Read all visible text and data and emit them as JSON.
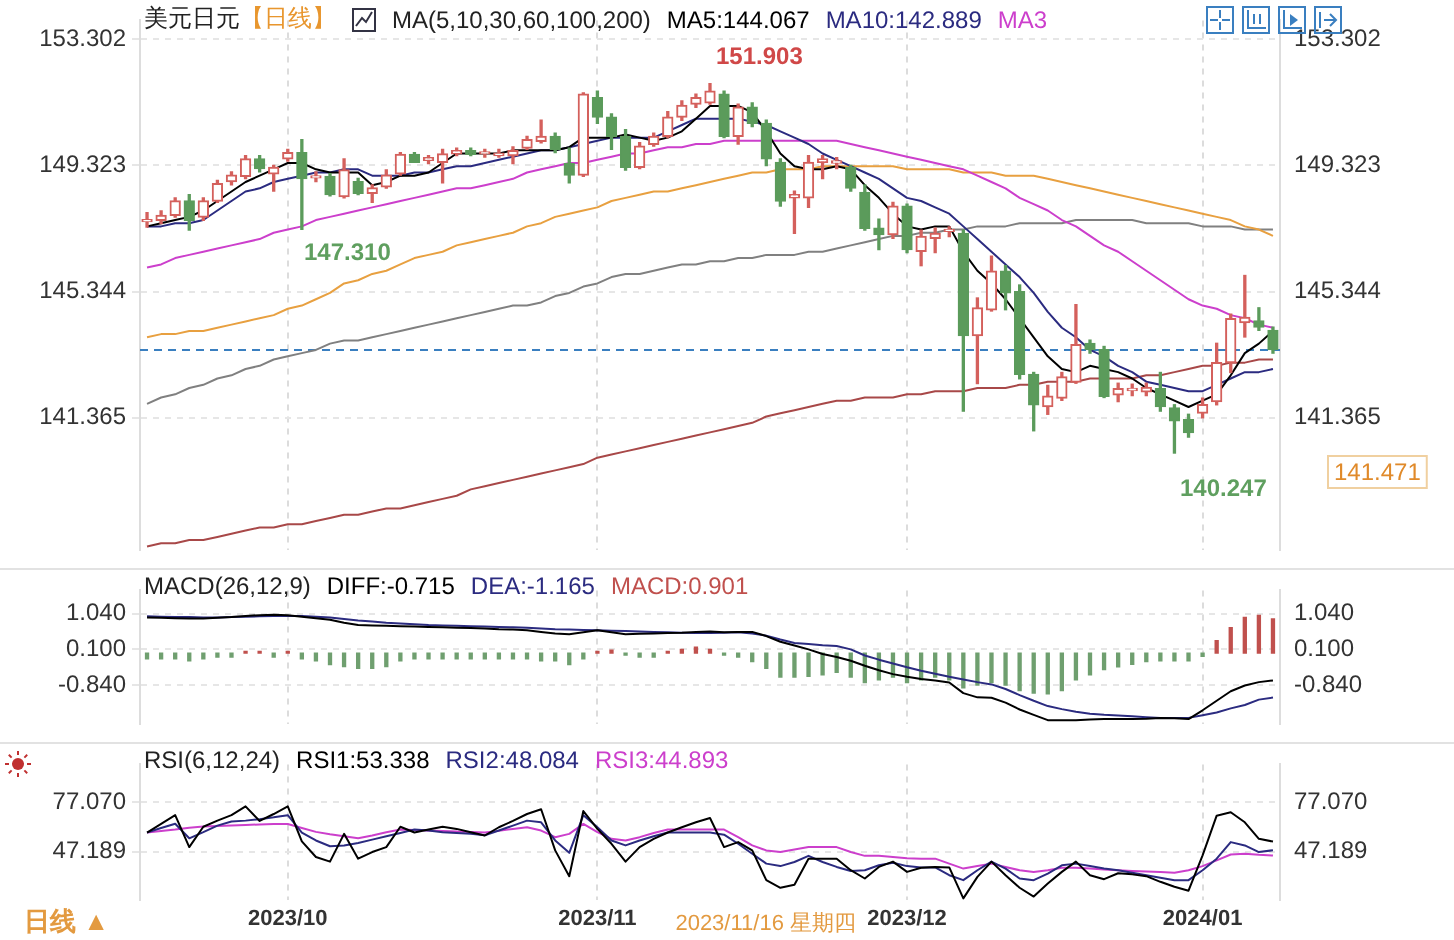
{
  "chart_data": [
    {
      "type": "candlestick",
      "title": "美元日元",
      "subtitle": "【日线】",
      "legend_title": "MA(5,10,30,60,100,200)",
      "legend": "top",
      "grid": true,
      "tick_labels": "y",
      "categories": [
        null,
        null,
        null,
        null,
        null,
        null,
        null,
        null,
        null,
        null,
        "2023/10",
        null,
        null,
        null,
        null,
        null,
        null,
        null,
        null,
        null,
        null,
        null,
        null,
        null,
        null,
        null,
        null,
        null,
        null,
        null,
        null,
        null,
        "2023/11",
        null,
        null,
        null,
        null,
        null,
        null,
        null,
        null,
        null,
        null,
        null,
        null,
        null,
        null,
        null,
        null,
        null,
        null,
        null,
        null,
        null,
        "2023/12",
        null,
        null,
        null,
        null,
        null,
        null,
        null,
        null,
        null,
        null,
        null,
        null,
        null,
        null,
        null,
        null,
        null,
        null,
        null,
        null,
        "2024/01",
        null,
        null,
        null,
        null,
        null
      ],
      "ohlc": [
        [
          147.55,
          147.83,
          147.38,
          147.59
        ],
        [
          147.59,
          147.89,
          147.49,
          147.75
        ],
        [
          147.75,
          148.3,
          147.69,
          148.2
        ],
        [
          148.2,
          148.4,
          147.28,
          147.59
        ],
        [
          147.69,
          148.3,
          147.59,
          148.2
        ],
        [
          148.2,
          148.85,
          148.16,
          148.75
        ],
        [
          148.81,
          149.12,
          148.71,
          149.02
        ],
        [
          148.98,
          149.63,
          148.91,
          149.53
        ],
        [
          149.53,
          149.63,
          149.12,
          149.22
        ],
        [
          149.06,
          149.32,
          148.51,
          149.26
        ],
        [
          149.53,
          149.83,
          149.46,
          149.73
        ],
        [
          149.73,
          150.14,
          147.31,
          148.91
        ],
        [
          148.93,
          149.12,
          148.81,
          148.99
        ],
        [
          148.98,
          149.06,
          148.36,
          148.4
        ],
        [
          148.34,
          149.53,
          148.3,
          149.18
        ],
        [
          148.81,
          148.91,
          148.4,
          148.44
        ],
        [
          148.44,
          148.71,
          148.16,
          148.61
        ],
        [
          148.65,
          149.18,
          148.61,
          149.02
        ],
        [
          149.06,
          149.73,
          149.02,
          149.67
        ],
        [
          149.67,
          149.73,
          149.42,
          149.42
        ],
        [
          149.48,
          149.63,
          149.38,
          149.57
        ],
        [
          149.42,
          149.83,
          148.77,
          149.69
        ],
        [
          149.69,
          149.87,
          149.63,
          149.79
        ],
        [
          149.79,
          149.87,
          149.63,
          149.67
        ],
        [
          149.69,
          149.83,
          149.59,
          149.73
        ],
        [
          149.63,
          149.83,
          149.59,
          149.71
        ],
        [
          149.63,
          149.91,
          149.38,
          149.79
        ],
        [
          149.87,
          150.24,
          149.83,
          150.14
        ],
        [
          150.08,
          150.75,
          150.04,
          150.24
        ],
        [
          150.24,
          150.34,
          149.73,
          149.83
        ],
        [
          149.38,
          149.87,
          148.77,
          149.02
        ],
        [
          149.02,
          151.61,
          148.98,
          151.57
        ],
        [
          151.46,
          151.67,
          150.65,
          150.85
        ],
        [
          150.85,
          150.95,
          149.83,
          150.24
        ],
        [
          150.24,
          150.45,
          149.18,
          149.26
        ],
        [
          149.26,
          150.04,
          149.22,
          149.93
        ],
        [
          149.99,
          150.34,
          149.93,
          150.24
        ],
        [
          150.24,
          151.02,
          150.2,
          150.85
        ],
        [
          150.85,
          151.36,
          150.75,
          151.22
        ],
        [
          151.26,
          151.57,
          151.16,
          151.46
        ],
        [
          151.3,
          151.903,
          151.26,
          151.67
        ],
        [
          151.57,
          151.67,
          150.2,
          150.24
        ],
        [
          150.24,
          151.26,
          150.0,
          151.16
        ],
        [
          151.16,
          151.3,
          150.55,
          150.65
        ],
        [
          150.65,
          150.75,
          149.32,
          149.53
        ],
        [
          149.42,
          149.53,
          148.04,
          148.2
        ],
        [
          148.3,
          148.51,
          147.18,
          148.4
        ],
        [
          148.3,
          149.63,
          148.0,
          149.42
        ],
        [
          149.42,
          149.63,
          148.91,
          149.53
        ],
        [
          149.4,
          149.57,
          149.22,
          149.44
        ],
        [
          149.26,
          149.32,
          148.51,
          148.61
        ],
        [
          148.47,
          148.71,
          147.28,
          147.34
        ],
        [
          147.34,
          147.63,
          146.67,
          147.14
        ],
        [
          147.14,
          148.16,
          147.02,
          148.04
        ],
        [
          148.04,
          148.1,
          146.57,
          146.67
        ],
        [
          146.61,
          147.28,
          146.16,
          147.08
        ],
        [
          147.02,
          147.34,
          146.57,
          147.18
        ],
        [
          147.24,
          147.38,
          147.08,
          147.28
        ],
        [
          147.18,
          147.28,
          141.57,
          143.95
        ],
        [
          143.95,
          145.14,
          142.44,
          144.83
        ],
        [
          144.77,
          146.46,
          144.73,
          145.99
        ],
        [
          145.99,
          146.16,
          144.77,
          145.3
        ],
        [
          145.34,
          145.55,
          142.59,
          142.73
        ],
        [
          142.73,
          142.79,
          140.95,
          141.77
        ],
        [
          141.71,
          142.38,
          141.47,
          142.04
        ],
        [
          141.98,
          142.79,
          141.91,
          142.65
        ],
        [
          142.49,
          144.93,
          142.45,
          143.67
        ],
        [
          143.71,
          143.81,
          143.4,
          143.51
        ],
        [
          143.51,
          143.61,
          142.0,
          142.04
        ],
        [
          142.08,
          142.45,
          141.87,
          142.28
        ],
        [
          142.22,
          142.42,
          142.06,
          142.26
        ],
        [
          142.18,
          142.45,
          142.06,
          142.32
        ],
        [
          142.28,
          142.79,
          141.57,
          141.71
        ],
        [
          141.67,
          141.77,
          140.247,
          141.26
        ],
        [
          141.3,
          141.47,
          140.75,
          140.89
        ],
        [
          141.51,
          141.98,
          141.36,
          141.77
        ],
        [
          141.87,
          143.71,
          141.77,
          143.1
        ],
        [
          143.1,
          144.63,
          142.79,
          144.49
        ],
        [
          144.36,
          145.85,
          143.91,
          144.53
        ],
        [
          144.42,
          144.83,
          144.12,
          144.22
        ],
        [
          144.12,
          144.22,
          143.4,
          143.51
        ]
      ],
      "colors": [
        "#d4605c",
        "#d4605c",
        "#d4605c",
        "#5b9b5b",
        "#d4605c",
        "#d4605c",
        "#d4605c",
        "#d4605c",
        "#5b9b5b",
        "#d4605c",
        "#d4605c",
        "#5b9b5b",
        "#d4605c",
        "#5b9b5b",
        "#d4605c",
        "#5b9b5b",
        "#d4605c",
        "#d4605c",
        "#d4605c",
        "#5b9b5b",
        "#d4605c",
        "#d4605c",
        "#d4605c",
        "#5b9b5b",
        "#d4605c",
        "#d4605c",
        "#d4605c",
        "#d4605c",
        "#d4605c",
        "#5b9b5b",
        "#5b9b5b",
        "#d4605c",
        "#5b9b5b",
        "#5b9b5b",
        "#5b9b5b",
        "#d4605c",
        "#d4605c",
        "#d4605c",
        "#d4605c",
        "#d4605c",
        "#d4605c",
        "#5b9b5b",
        "#d4605c",
        "#5b9b5b",
        "#5b9b5b",
        "#5b9b5b",
        "#d4605c",
        "#d4605c",
        "#d4605c",
        "#d4605c",
        "#5b9b5b",
        "#5b9b5b",
        "#5b9b5b",
        "#d4605c",
        "#5b9b5b",
        "#d4605c",
        "#d4605c",
        "#d4605c",
        "#5b9b5b",
        "#d4605c",
        "#d4605c",
        "#5b9b5b",
        "#5b9b5b",
        "#5b9b5b",
        "#d4605c",
        "#d4605c",
        "#d4605c",
        "#5b9b5b",
        "#5b9b5b",
        "#d4605c",
        "#d4605c",
        "#d4605c",
        "#5b9b5b",
        "#5b9b5b",
        "#5b9b5b",
        "#d4605c",
        "#d4605c",
        "#d4605c",
        "#d4605c",
        "#5b9b5b",
        "#5b9b5b"
      ],
      "series": [
        {
          "name": "MA5:144.067",
          "type": "line",
          "color": "#000000",
          "values": [
            147.4,
            147.5,
            147.6,
            147.7,
            147.9,
            148.2,
            148.5,
            148.8,
            149.0,
            149.2,
            149.4,
            149.4,
            149.2,
            149.1,
            149.1,
            149.1,
            148.7,
            148.8,
            149.0,
            149.0,
            149.1,
            149.4,
            149.7,
            149.7,
            149.7,
            149.7,
            149.8,
            149.8,
            149.8,
            149.8,
            149.9,
            150.2,
            150.2,
            150.2,
            150.3,
            150.2,
            150.1,
            150.2,
            150.4,
            150.8,
            151.2,
            151.2,
            151.2,
            151.0,
            150.4,
            149.7,
            149.3,
            149.2,
            149.2,
            149.3,
            149.2,
            148.7,
            148.3,
            147.8,
            147.4,
            147.3,
            147.4,
            147.4,
            146.6,
            146.0,
            145.6,
            145.1,
            144.5,
            143.9,
            143.3,
            142.9,
            142.8,
            143.0,
            142.9,
            142.8,
            142.6,
            142.3,
            142.1,
            141.9,
            141.7,
            141.9,
            142.1,
            142.7,
            143.4,
            143.7,
            144.1
          ]
        },
        {
          "name": "MA10:142.889",
          "type": "line",
          "color": "#2b2b80",
          "values": [
            147.4,
            147.4,
            147.5,
            147.5,
            147.6,
            147.9,
            148.2,
            148.5,
            148.6,
            148.8,
            148.9,
            149.0,
            149.1,
            149.1,
            149.2,
            149.2,
            149.0,
            149.0,
            149.0,
            149.1,
            149.1,
            149.2,
            149.3,
            149.3,
            149.4,
            149.5,
            149.6,
            149.7,
            149.8,
            149.8,
            149.9,
            150.0,
            150.1,
            150.2,
            150.2,
            150.2,
            150.2,
            150.4,
            150.6,
            150.8,
            150.8,
            150.8,
            150.8,
            150.7,
            150.6,
            150.4,
            150.2,
            150.0,
            149.7,
            149.5,
            149.3,
            149.1,
            148.9,
            148.6,
            148.3,
            148.2,
            148.0,
            147.8,
            147.4,
            147.0,
            146.6,
            146.2,
            145.8,
            145.3,
            144.7,
            144.2,
            143.9,
            143.5,
            143.3,
            143.0,
            142.8,
            142.5,
            142.4,
            142.3,
            142.2,
            142.2,
            142.4,
            142.6,
            142.8,
            142.8,
            142.9
          ]
        },
        {
          "name": "MA3",
          "type": "line",
          "color": "#cc3fcc",
          "values": [
            146.1,
            146.2,
            146.4,
            146.5,
            146.6,
            146.7,
            146.8,
            146.9,
            147.0,
            147.2,
            147.3,
            147.4,
            147.6,
            147.7,
            147.8,
            147.9,
            148.0,
            148.1,
            148.2,
            148.3,
            148.4,
            148.5,
            148.6,
            148.6,
            148.7,
            148.8,
            148.9,
            149.1,
            149.2,
            149.3,
            149.4,
            149.4,
            149.5,
            149.6,
            149.7,
            149.7,
            149.8,
            149.9,
            149.9,
            150.0,
            150.0,
            150.1,
            150.1,
            150.1,
            150.1,
            150.1,
            150.1,
            150.1,
            150.1,
            150.1,
            150.0,
            149.9,
            149.8,
            149.7,
            149.6,
            149.5,
            149.4,
            149.3,
            149.2,
            149.0,
            148.8,
            148.6,
            148.3,
            148.1,
            147.9,
            147.6,
            147.4,
            147.1,
            146.8,
            146.6,
            146.3,
            146.0,
            145.7,
            145.4,
            145.1,
            144.9,
            144.8,
            144.6,
            144.5,
            144.3,
            144.2
          ]
        },
        {
          "type": "line",
          "color": "#e8a040",
          "values": [
            143.9,
            144.0,
            144.0,
            144.1,
            144.1,
            144.2,
            144.3,
            144.4,
            144.5,
            144.6,
            144.8,
            144.9,
            145.1,
            145.3,
            145.6,
            145.7,
            145.9,
            146.0,
            146.2,
            146.4,
            146.5,
            146.6,
            146.8,
            146.9,
            147.0,
            147.1,
            147.2,
            147.4,
            147.5,
            147.7,
            147.8,
            147.9,
            148.0,
            148.2,
            148.3,
            148.4,
            148.5,
            148.5,
            148.6,
            148.7,
            148.8,
            148.9,
            149.0,
            149.1,
            149.1,
            149.2,
            149.2,
            149.2,
            149.3,
            149.3,
            149.3,
            149.3,
            149.3,
            149.3,
            149.2,
            149.2,
            149.2,
            149.2,
            149.1,
            149.1,
            149.1,
            149.0,
            149.0,
            149.0,
            148.9,
            148.8,
            148.7,
            148.6,
            148.5,
            148.4,
            148.3,
            148.2,
            148.1,
            148.0,
            147.9,
            147.8,
            147.7,
            147.6,
            147.4,
            147.3,
            147.1
          ]
        },
        {
          "type": "line",
          "color": "#808080",
          "values": [
            141.8,
            142.0,
            142.1,
            142.3,
            142.4,
            142.6,
            142.7,
            142.9,
            143.0,
            143.2,
            143.3,
            143.4,
            143.5,
            143.7,
            143.8,
            143.8,
            143.9,
            144.0,
            144.1,
            144.2,
            144.3,
            144.4,
            144.5,
            144.6,
            144.7,
            144.8,
            144.9,
            144.9,
            145.0,
            145.2,
            145.3,
            145.5,
            145.6,
            145.8,
            145.9,
            145.9,
            146.0,
            146.1,
            146.2,
            146.2,
            146.3,
            146.3,
            146.4,
            146.4,
            146.5,
            146.5,
            146.5,
            146.6,
            146.6,
            146.7,
            146.8,
            146.9,
            147.0,
            147.1,
            147.1,
            147.2,
            147.2,
            147.3,
            147.3,
            147.4,
            147.4,
            147.4,
            147.5,
            147.5,
            147.5,
            147.5,
            147.6,
            147.6,
            147.6,
            147.6,
            147.6,
            147.5,
            147.5,
            147.5,
            147.5,
            147.4,
            147.4,
            147.4,
            147.3,
            147.3,
            147.3
          ]
        },
        {
          "type": "line",
          "color": "#a84848",
          "values": [
            137.3,
            137.4,
            137.4,
            137.5,
            137.5,
            137.6,
            137.7,
            137.8,
            137.9,
            137.9,
            138.0,
            138.0,
            138.1,
            138.2,
            138.3,
            138.3,
            138.4,
            138.5,
            138.5,
            138.6,
            138.7,
            138.8,
            138.9,
            139.1,
            139.2,
            139.3,
            139.4,
            139.5,
            139.6,
            139.7,
            139.8,
            139.9,
            140.1,
            140.2,
            140.3,
            140.4,
            140.5,
            140.6,
            140.7,
            140.8,
            140.9,
            141.0,
            141.1,
            141.2,
            141.4,
            141.5,
            141.6,
            141.7,
            141.8,
            141.9,
            141.9,
            142.0,
            142.0,
            142.0,
            142.1,
            142.1,
            142.2,
            142.2,
            142.2,
            142.3,
            142.3,
            142.3,
            142.4,
            142.4,
            142.5,
            142.5,
            142.5,
            142.6,
            142.6,
            142.6,
            142.6,
            142.7,
            142.7,
            142.8,
            142.9,
            143.0,
            143.0,
            143.1,
            143.1,
            143.2,
            143.2
          ]
        }
      ],
      "ylim": [
        137.2,
        153.9
      ],
      "yticks": [
        141.365,
        145.344,
        149.323,
        153.302
      ],
      "y2lim": [
        137.2,
        153.9
      ],
      "y2ticks": [
        141.365,
        145.344,
        149.323,
        153.302
      ],
      "ref_lines": [
        {
          "axis": "y",
          "value": 143.5,
          "color": "#3a7fc0",
          "line_style": "dashed"
        }
      ],
      "annotations": [
        "151.903",
        "147.310",
        "140.247",
        "141.471"
      ]
    },
    {
      "type": "bar",
      "legend_title": "MACD(26,12,9)",
      "legend": "top left",
      "grid": true,
      "tick_labels": "y",
      "categories": [
        null,
        null,
        null,
        null,
        null,
        null,
        null,
        null,
        null,
        null,
        "2023/10",
        null,
        null,
        null,
        null,
        null,
        null,
        null,
        null,
        null,
        null,
        null,
        null,
        null,
        null,
        null,
        null,
        null,
        null,
        null,
        null,
        null,
        "2023/11",
        null,
        null,
        null,
        null,
        null,
        null,
        null,
        null,
        null,
        null,
        null,
        null,
        null,
        null,
        null,
        null,
        null,
        null,
        null,
        null,
        null,
        "2023/12",
        null,
        null,
        null,
        null,
        null,
        null,
        null,
        null,
        null,
        null,
        null,
        null,
        null,
        null,
        null,
        null,
        null,
        null,
        null,
        null,
        "2024/01",
        null,
        null,
        null,
        null,
        null
      ],
      "series": [
        {
          "name": "DIFF:-0.715",
          "type": "line",
          "color": "#000000",
          "values": [
            0.94,
            0.93,
            0.92,
            0.91,
            0.91,
            0.93,
            0.95,
            0.98,
            1.0,
            1.01,
            1.0,
            0.96,
            0.92,
            0.88,
            0.8,
            0.74,
            0.73,
            0.72,
            0.71,
            0.7,
            0.69,
            0.68,
            0.67,
            0.66,
            0.65,
            0.63,
            0.62,
            0.6,
            0.56,
            0.52,
            0.5,
            0.55,
            0.6,
            0.55,
            0.5,
            0.51,
            0.52,
            0.53,
            0.54,
            0.56,
            0.57,
            0.55,
            0.56,
            0.56,
            0.45,
            0.3,
            0.2,
            0.1,
            -0.02,
            -0.1,
            -0.2,
            -0.33,
            -0.45,
            -0.55,
            -0.62,
            -0.68,
            -0.72,
            -0.77,
            -1.05,
            -1.16,
            -1.17,
            -1.3,
            -1.48,
            -1.62,
            -1.76,
            -1.76,
            -1.76,
            -1.74,
            -1.73,
            -1.73,
            -1.73,
            -1.72,
            -1.7,
            -1.71,
            -1.73,
            -1.5,
            -1.25,
            -1.0,
            -0.85,
            -0.76,
            -0.715
          ]
        },
        {
          "name": "DEA:-1.165",
          "type": "line",
          "color": "#2b2b80",
          "values": [
            0.97,
            0.96,
            0.95,
            0.95,
            0.94,
            0.94,
            0.95,
            0.96,
            0.97,
            0.98,
            0.98,
            0.98,
            0.96,
            0.94,
            0.9,
            0.86,
            0.83,
            0.8,
            0.78,
            0.76,
            0.74,
            0.73,
            0.72,
            0.71,
            0.7,
            0.69,
            0.68,
            0.67,
            0.65,
            0.63,
            0.62,
            0.61,
            0.6,
            0.59,
            0.58,
            0.57,
            0.56,
            0.55,
            0.54,
            0.53,
            0.53,
            0.54,
            0.55,
            0.52,
            0.46,
            0.36,
            0.27,
            0.24,
            0.21,
            0.19,
            0.1,
            -0.06,
            -0.17,
            -0.27,
            -0.37,
            -0.46,
            -0.54,
            -0.62,
            -0.69,
            -0.76,
            -0.82,
            -0.94,
            -1.1,
            -1.25,
            -1.39,
            -1.47,
            -1.54,
            -1.59,
            -1.62,
            -1.64,
            -1.66,
            -1.68,
            -1.7,
            -1.7,
            -1.7,
            -1.63,
            -1.56,
            -1.45,
            -1.36,
            -1.22,
            -1.165
          ]
        },
        {
          "name": "MACD:0.901",
          "type": "bar",
          "values": [
            -0.15,
            -0.15,
            -0.15,
            -0.2,
            -0.15,
            -0.1,
            -0.1,
            0.05,
            0.05,
            -0.1,
            0.05,
            -0.15,
            -0.2,
            -0.3,
            -0.35,
            -0.4,
            -0.4,
            -0.35,
            -0.2,
            -0.15,
            -0.15,
            -0.15,
            -0.15,
            -0.15,
            -0.15,
            -0.15,
            -0.15,
            -0.15,
            -0.2,
            -0.2,
            -0.3,
            -0.15,
            0.05,
            0.08,
            -0.05,
            -0.1,
            -0.1,
            0.05,
            0.1,
            0.16,
            0.1,
            -0.05,
            -0.1,
            -0.22,
            -0.4,
            -0.63,
            -0.63,
            -0.61,
            -0.57,
            -0.5,
            -0.63,
            -0.77,
            -0.7,
            -0.63,
            -0.77,
            -0.7,
            -0.63,
            -0.7,
            -0.91,
            -0.84,
            -0.77,
            -0.84,
            -0.98,
            -1.05,
            -1.07,
            -0.98,
            -0.7,
            -0.57,
            -0.43,
            -0.36,
            -0.29,
            -0.22,
            -0.2,
            -0.2,
            -0.2,
            -0.08,
            0.33,
            0.67,
            0.94,
            0.99,
            0.901
          ],
          "colors": [
            "#6f9f6f",
            "#6f9f6f",
            "#6f9f6f",
            "#6f9f6f",
            "#6f9f6f",
            "#6f9f6f",
            "#6f9f6f",
            "#c0504d",
            "#c0504d",
            "#6f9f6f",
            "#c0504d",
            "#6f9f6f",
            "#6f9f6f",
            "#6f9f6f",
            "#6f9f6f",
            "#6f9f6f",
            "#6f9f6f",
            "#6f9f6f",
            "#6f9f6f",
            "#6f9f6f",
            "#6f9f6f",
            "#6f9f6f",
            "#6f9f6f",
            "#6f9f6f",
            "#6f9f6f",
            "#6f9f6f",
            "#6f9f6f",
            "#6f9f6f",
            "#6f9f6f",
            "#6f9f6f",
            "#6f9f6f",
            "#6f9f6f",
            "#c0504d",
            "#c0504d",
            "#6f9f6f",
            "#6f9f6f",
            "#6f9f6f",
            "#c0504d",
            "#c0504d",
            "#c0504d",
            "#c0504d",
            "#6f9f6f",
            "#6f9f6f",
            "#6f9f6f",
            "#6f9f6f",
            "#6f9f6f",
            "#6f9f6f",
            "#6f9f6f",
            "#6f9f6f",
            "#6f9f6f",
            "#6f9f6f",
            "#6f9f6f",
            "#6f9f6f",
            "#6f9f6f",
            "#6f9f6f",
            "#6f9f6f",
            "#6f9f6f",
            "#6f9f6f",
            "#6f9f6f",
            "#6f9f6f",
            "#6f9f6f",
            "#6f9f6f",
            "#6f9f6f",
            "#6f9f6f",
            "#6f9f6f",
            "#6f9f6f",
            "#6f9f6f",
            "#6f9f6f",
            "#6f9f6f",
            "#6f9f6f",
            "#6f9f6f",
            "#6f9f6f",
            "#6f9f6f",
            "#6f9f6f",
            "#6f9f6f",
            "#6f9f6f",
            "#c0504d",
            "#c0504d",
            "#c0504d",
            "#c0504d",
            "#c0504d"
          ]
        }
      ],
      "ylim": [
        -1.85,
        1.65
      ],
      "yticks": [
        {
          "value": -0.84,
          "label": "-0.840"
        },
        {
          "value": 0.1,
          "label": "0.100"
        },
        {
          "value": 1.04,
          "label": "1.040"
        }
      ],
      "y2lim": [
        -1.85,
        1.65
      ],
      "y2ticks": [
        {
          "value": -0.84,
          "label": "-0.840"
        },
        {
          "value": 0.1,
          "label": "0.100"
        },
        {
          "value": 1.04,
          "label": "1.040"
        }
      ]
    },
    {
      "type": "line",
      "legend_title": "RSI(6,12,24)",
      "legend": "top left",
      "grid": true,
      "categories": [
        null,
        null,
        null,
        null,
        null,
        null,
        null,
        null,
        null,
        null,
        "2023/10",
        null,
        null,
        null,
        null,
        null,
        null,
        null,
        null,
        null,
        null,
        null,
        null,
        null,
        null,
        null,
        null,
        null,
        null,
        null,
        null,
        null,
        "2023/11",
        null,
        null,
        null,
        null,
        null,
        null,
        null,
        null,
        null,
        null,
        null,
        null,
        null,
        null,
        null,
        null,
        null,
        null,
        null,
        null,
        null,
        "2023/12",
        null,
        null,
        null,
        null,
        null,
        null,
        null,
        null,
        null,
        null,
        null,
        null,
        null,
        null,
        null,
        null,
        null,
        null,
        null,
        null,
        "2024/01",
        null,
        null,
        null,
        null,
        null
      ],
      "series": [
        {
          "name": "RSI1:53.338",
          "color": "#000000",
          "values": [
            58.8,
            64,
            69.3,
            50.0,
            62.3,
            66,
            69.3,
            74.6,
            65.8,
            70,
            74.6,
            53.5,
            44,
            41.2,
            58,
            43,
            47,
            50,
            62.3,
            58.8,
            60.6,
            62.3,
            61,
            59,
            57,
            62,
            65.8,
            70,
            72.9,
            48,
            32.4,
            71.8,
            61,
            52,
            41.2,
            50,
            55,
            58.8,
            62,
            65,
            67.6,
            50,
            53,
            48,
            30,
            25.4,
            27.2,
            43,
            43,
            43,
            36,
            31,
            38,
            41.2,
            35,
            37.5,
            38,
            37.7,
            19,
            32,
            41.2,
            33,
            25.4,
            20.1,
            28,
            35,
            41.2,
            33,
            30.6,
            34.2,
            33.5,
            32.4,
            29,
            26,
            23.6,
            45,
            69,
            71.1,
            65,
            55,
            53.338
          ]
        },
        {
          "name": "RSI2:48.084",
          "color": "#2b2b80",
          "values": [
            58.8,
            61.5,
            64.1,
            55.3,
            59,
            63,
            65.5,
            66,
            66.9,
            68,
            69.3,
            58.8,
            54,
            50.5,
            51,
            52.5,
            54.5,
            56.5,
            58.5,
            60.6,
            60,
            59,
            58.5,
            58,
            57.2,
            60,
            63,
            66,
            65,
            54,
            46.5,
            69.3,
            62,
            54,
            51,
            54,
            56.5,
            58.8,
            58.8,
            58.8,
            58.8,
            57.5,
            52,
            46,
            40,
            38.5,
            41,
            44.7,
            41,
            38,
            35.5,
            36,
            39,
            40.5,
            38.5,
            37.7,
            37.7,
            33,
            30,
            36,
            41.2,
            37,
            31,
            30,
            34,
            39,
            40,
            38.5,
            37,
            36,
            34.5,
            33,
            31.5,
            30,
            30,
            36,
            43,
            53,
            51,
            47,
            48.084
          ]
        },
        {
          "name": "RSI3:44.893",
          "color": "#cc3fcc",
          "values": [
            58.8,
            59.7,
            60.6,
            61.7,
            62.4,
            62.7,
            63,
            63.4,
            63.7,
            64,
            64,
            61.5,
            59.2,
            57.7,
            56.5,
            55.3,
            57,
            59,
            60.6,
            60.3,
            60,
            59.7,
            59.4,
            59.1,
            58.8,
            59.8,
            61,
            62,
            60,
            56,
            58,
            64,
            59,
            55,
            54,
            56,
            58.5,
            60.6,
            60.6,
            60.6,
            60.6,
            60.6,
            56,
            51,
            48,
            47,
            48.5,
            50,
            50,
            50,
            47,
            44.7,
            44.7,
            44,
            43.3,
            43,
            43,
            40,
            37,
            38.5,
            40,
            38,
            36,
            35,
            36,
            37.5,
            37.5,
            37,
            36.5,
            36,
            35.6,
            35.2,
            34.9,
            34.5,
            36,
            38.5,
            42,
            45.5,
            46,
            45.3,
            44.893
          ]
        }
      ],
      "ylim": [
        18,
        100
      ],
      "yticks": [
        47.189,
        {
          "value": 77.07,
          "label": "77.070"
        }
      ],
      "y2lim": [
        18,
        100
      ],
      "y2ticks": [
        47.189,
        {
          "value": 77.07,
          "label": "77.070"
        }
      ],
      "annotations": [
        "2023/11/16 星期四",
        "日线 ▲"
      ]
    }
  ]
}
